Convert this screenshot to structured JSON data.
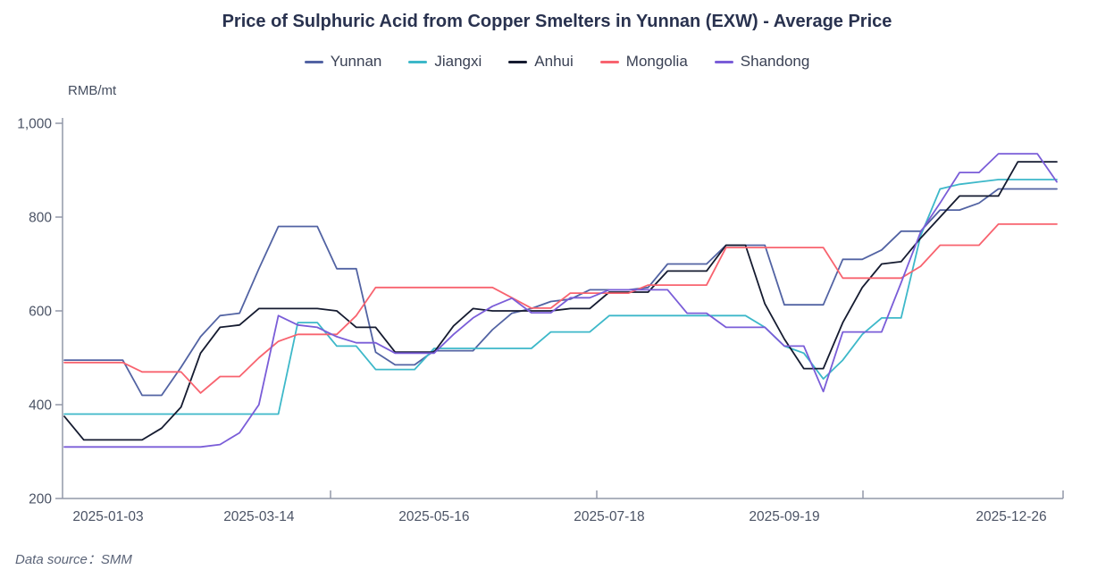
{
  "chart": {
    "title": "Price of Sulphuric Acid from Copper Smelters in Yunnan (EXW) - Average Price",
    "unit_label": "RMB/mt",
    "footer": "Data source：SMM"
  },
  "chart_data": {
    "type": "line",
    "title": "Price of Sulphuric Acid from Copper Smelters in Yunnan (EXW) - Average Price",
    "ylabel": "RMB/mt",
    "ylim": [
      200,
      1000
    ],
    "y_ticks": [
      200,
      400,
      600,
      800,
      1000
    ],
    "grid": false,
    "legend_position": "top",
    "x": [
      "2025-01-03",
      "2025-01-10",
      "2025-01-17",
      "2025-01-24",
      "2025-01-31",
      "2025-02-07",
      "2025-02-14",
      "2025-02-21",
      "2025-02-28",
      "2025-03-07",
      "2025-03-14",
      "2025-03-21",
      "2025-03-28",
      "2025-04-04",
      "2025-04-11",
      "2025-04-18",
      "2025-04-25",
      "2025-05-02",
      "2025-05-09",
      "2025-05-16",
      "2025-05-23",
      "2025-05-30",
      "2025-06-06",
      "2025-06-13",
      "2025-06-20",
      "2025-06-27",
      "2025-07-04",
      "2025-07-11",
      "2025-07-18",
      "2025-07-25",
      "2025-08-01",
      "2025-08-08",
      "2025-08-15",
      "2025-08-22",
      "2025-08-29",
      "2025-09-05",
      "2025-09-12",
      "2025-09-19",
      "2025-09-26",
      "2025-10-03",
      "2025-10-10",
      "2025-10-17",
      "2025-10-24",
      "2025-10-31",
      "2025-11-07",
      "2025-11-14",
      "2025-11-21",
      "2025-11-28",
      "2025-12-05",
      "2025-12-12",
      "2025-12-19",
      "2025-12-26"
    ],
    "x_tick_labels": [
      "2025-01-03",
      "2025-03-14",
      "2025-05-16",
      "2025-07-18",
      "2025-09-19",
      "2025-12-26"
    ],
    "x_tick_indices": [
      0,
      10,
      19,
      28,
      37,
      51
    ],
    "series": [
      {
        "name": "Yunnan",
        "color": "#5263a3",
        "values": [
          495,
          495,
          495,
          495,
          420,
          420,
          480,
          545,
          590,
          595,
          690,
          780,
          780,
          780,
          690,
          690,
          512,
          485,
          485,
          515,
          515,
          515,
          560,
          595,
          605,
          620,
          625,
          645,
          645,
          645,
          650,
          700,
          700,
          700,
          740,
          740,
          740,
          613,
          613,
          613,
          710,
          710,
          730,
          770,
          770,
          815,
          815,
          830,
          860,
          860,
          860,
          860
        ]
      },
      {
        "name": "Jiangxi",
        "color": "#3db8c9",
        "values": [
          380,
          380,
          380,
          380,
          380,
          380,
          380,
          380,
          380,
          380,
          380,
          380,
          575,
          575,
          525,
          525,
          475,
          475,
          475,
          520,
          520,
          520,
          520,
          520,
          520,
          555,
          555,
          555,
          590,
          590,
          590,
          590,
          590,
          590,
          590,
          590,
          565,
          525,
          510,
          455,
          495,
          550,
          585,
          585,
          760,
          860,
          870,
          875,
          880,
          880,
          880,
          880
        ]
      },
      {
        "name": "Anhui",
        "color": "#151b30",
        "values": [
          375,
          325,
          325,
          325,
          325,
          350,
          395,
          510,
          565,
          570,
          605,
          605,
          605,
          605,
          600,
          565,
          565,
          512,
          512,
          512,
          568,
          605,
          600,
          600,
          600,
          600,
          605,
          605,
          640,
          640,
          640,
          685,
          685,
          685,
          740,
          740,
          615,
          540,
          477,
          477,
          575,
          650,
          700,
          705,
          755,
          800,
          845,
          845,
          845,
          918,
          918,
          918
        ]
      },
      {
        "name": "Mongolia",
        "color": "#f8636f",
        "values": [
          490,
          490,
          490,
          490,
          470,
          470,
          470,
          425,
          460,
          460,
          500,
          535,
          550,
          550,
          550,
          590,
          650,
          650,
          650,
          650,
          650,
          650,
          650,
          628,
          606,
          606,
          638,
          638,
          638,
          638,
          655,
          655,
          655,
          655,
          735,
          735,
          735,
          735,
          735,
          735,
          670,
          670,
          670,
          670,
          695,
          740,
          740,
          740,
          785,
          785,
          785,
          785
        ]
      },
      {
        "name": "Shandong",
        "color": "#7a5dd8",
        "values": [
          310,
          310,
          310,
          310,
          310,
          310,
          310,
          310,
          315,
          340,
          400,
          590,
          570,
          565,
          545,
          532,
          532,
          510,
          510,
          510,
          550,
          585,
          610,
          627,
          596,
          596,
          628,
          628,
          645,
          645,
          645,
          645,
          595,
          595,
          565,
          565,
          565,
          525,
          525,
          428,
          555,
          555,
          555,
          660,
          768,
          830,
          895,
          895,
          935,
          935,
          935,
          875
        ]
      }
    ]
  }
}
